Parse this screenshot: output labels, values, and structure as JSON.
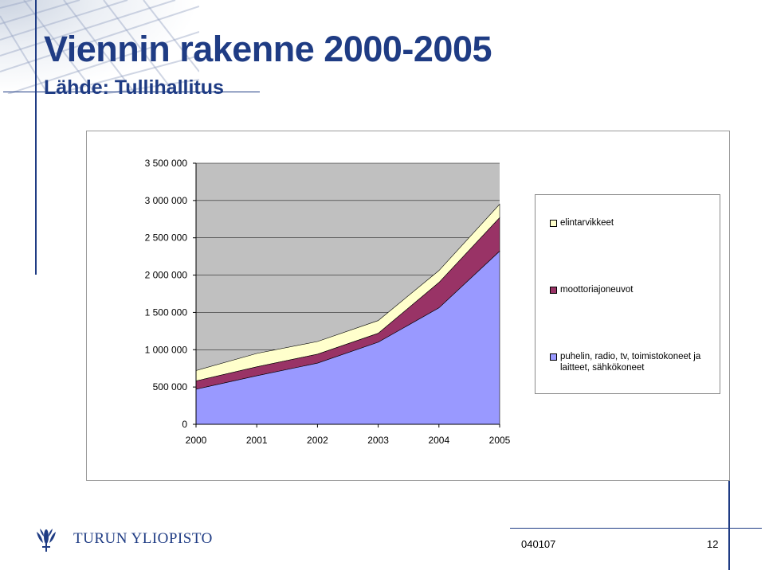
{
  "slide": {
    "title": "Viennin rakenne 2000-2005",
    "subtitle": "Lähde: Tullihallitus"
  },
  "footer": {
    "organization": "TURUN YLIOPISTO",
    "code": "040107",
    "page_number": "12"
  },
  "colors": {
    "title": "#1f3c84",
    "plot_background": "#c0c0c0",
    "series_phones": "#9999ff",
    "series_vehicles": "#993366",
    "series_food": "#ffffcc"
  },
  "chart_data": {
    "type": "area",
    "stacked": true,
    "x": [
      "2000",
      "2001",
      "2002",
      "2003",
      "2004",
      "2005"
    ],
    "series": [
      {
        "name": "puhelin, radio, tv, toimistokoneet ja laitteet, sähkökoneet",
        "values": [
          470000,
          650000,
          820000,
          1100000,
          1560000,
          2320000
        ],
        "color": "#9999ff"
      },
      {
        "name": "moottoriajoneuvot",
        "values": [
          110000,
          120000,
          120000,
          120000,
          340000,
          450000
        ],
        "color": "#993366"
      },
      {
        "name": "elintarvikkeet",
        "values": [
          140000,
          180000,
          170000,
          170000,
          160000,
          180000
        ],
        "color": "#ffffcc"
      }
    ],
    "ylim": [
      0,
      3500000
    ],
    "yticks": [
      0,
      500000,
      1000000,
      1500000,
      2000000,
      2500000,
      3000000,
      3500000
    ],
    "ytick_labels": [
      "0",
      "500 000",
      "1 000 000",
      "1 500 000",
      "2 000 000",
      "2 500 000",
      "3 000 000",
      "3 500 000"
    ],
    "grid": true,
    "legend": {
      "position": "right",
      "order": [
        "elintarvikkeet",
        "moottoriajoneuvot",
        "puhelin, radio, tv, toimistokoneet ja laitteet, sähkökoneet"
      ]
    }
  }
}
